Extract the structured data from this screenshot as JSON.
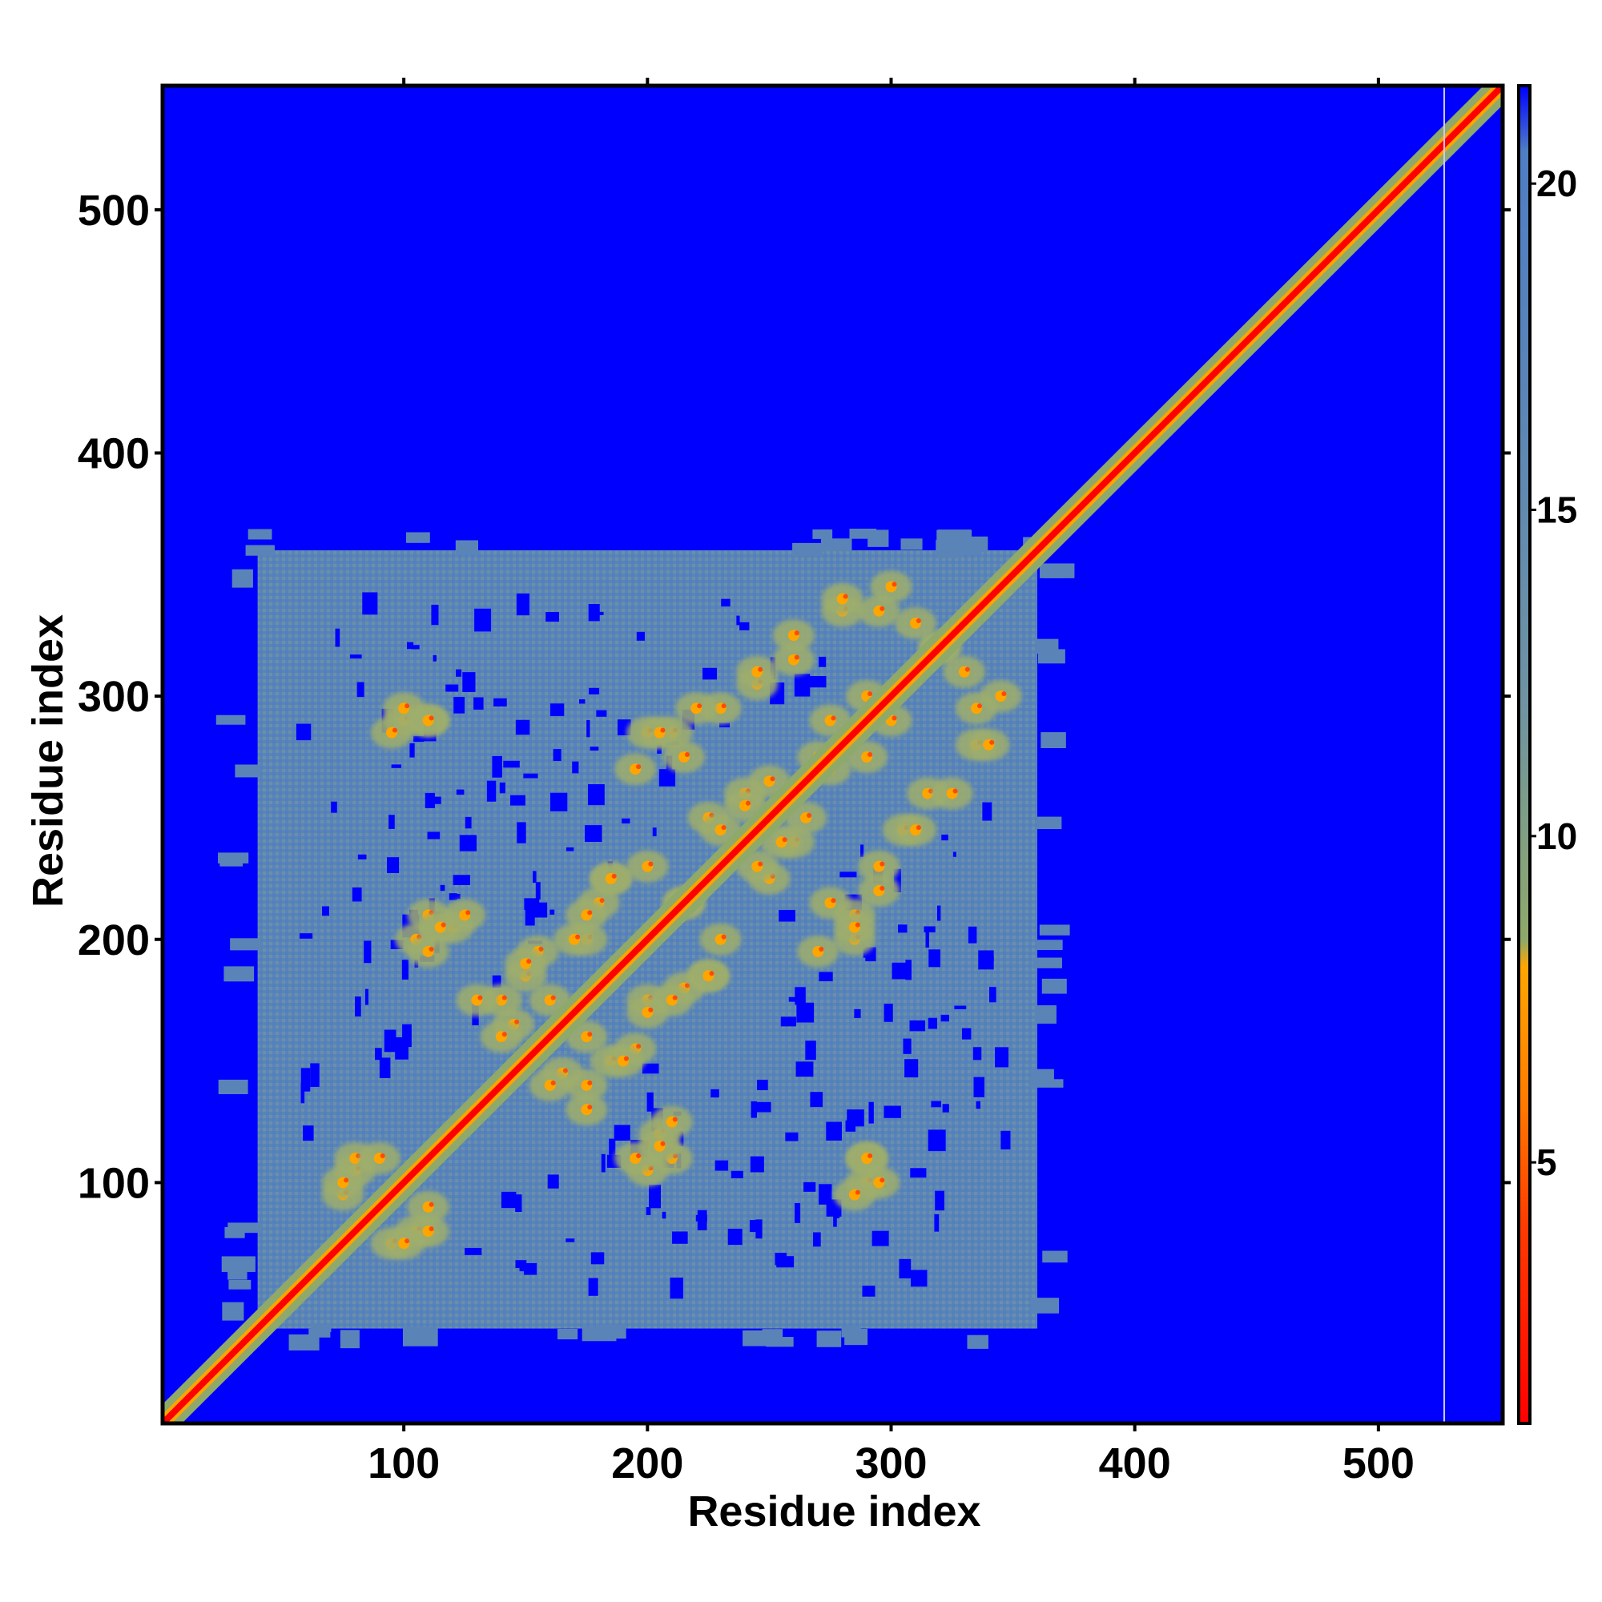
{
  "chart_data": {
    "type": "heatmap",
    "title": "",
    "xlabel": "Residue index",
    "ylabel": "Residue index",
    "xlim": [
      1,
      551
    ],
    "ylim": [
      1,
      551
    ],
    "x_ticks": [
      100,
      200,
      300,
      400,
      500
    ],
    "y_ticks": [
      100,
      200,
      300,
      400,
      500
    ],
    "x_tick_labels": [
      "100",
      "200",
      "300",
      "400",
      "500"
    ],
    "y_tick_labels": [
      "100",
      "200",
      "300",
      "400",
      "500"
    ],
    "colorbar": {
      "min": 1,
      "max": 21.5,
      "ticks": [
        5,
        10,
        15,
        20
      ],
      "tick_labels": [
        "5",
        "10",
        "15",
        "20"
      ],
      "color_stops": [
        {
          "value": 1,
          "color": "#ff0000"
        },
        {
          "value": 4,
          "color": "#ff3a00"
        },
        {
          "value": 6,
          "color": "#ff7d00"
        },
        {
          "value": 8,
          "color": "#ffa500"
        },
        {
          "value": 8.4,
          "color": "#8fa96a"
        },
        {
          "value": 12,
          "color": "#6f93a1"
        },
        {
          "value": 17,
          "color": "#5a84b8"
        },
        {
          "value": 20.5,
          "color": "#4f7dc4"
        },
        {
          "value": 21.5,
          "color": "#0000ff"
        }
      ]
    },
    "background_value": 21.5,
    "background_color": "#0000ff",
    "diagonal": {
      "x_range": [
        1,
        551
      ],
      "value": 1,
      "color": "#ff0000"
    },
    "contact_region": {
      "x_range": [
        40,
        360
      ],
      "y_range": [
        40,
        360
      ],
      "value": 16,
      "color": "#5a84b8"
    },
    "off_diagonal_contacts": [
      {
        "x": 100,
        "y": 290
      },
      {
        "x": 110,
        "y": 290
      },
      {
        "x": 210,
        "y": 285
      },
      {
        "x": 215,
        "y": 275
      },
      {
        "x": 230,
        "y": 295
      },
      {
        "x": 245,
        "y": 305
      },
      {
        "x": 260,
        "y": 315
      },
      {
        "x": 280,
        "y": 335
      },
      {
        "x": 300,
        "y": 345
      },
      {
        "x": 310,
        "y": 330
      },
      {
        "x": 320,
        "y": 320
      },
      {
        "x": 335,
        "y": 295
      },
      {
        "x": 340,
        "y": 280
      },
      {
        "x": 325,
        "y": 260
      },
      {
        "x": 310,
        "y": 245
      },
      {
        "x": 295,
        "y": 220
      },
      {
        "x": 285,
        "y": 200
      },
      {
        "x": 270,
        "y": 195
      },
      {
        "x": 265,
        "y": 250
      },
      {
        "x": 275,
        "y": 270
      },
      {
        "x": 240,
        "y": 260
      },
      {
        "x": 225,
        "y": 250
      },
      {
        "x": 205,
        "y": 285
      },
      {
        "x": 185,
        "y": 225
      },
      {
        "x": 175,
        "y": 200
      },
      {
        "x": 180,
        "y": 215
      },
      {
        "x": 200,
        "y": 230
      },
      {
        "x": 215,
        "y": 215
      },
      {
        "x": 225,
        "y": 185
      },
      {
        "x": 210,
        "y": 175
      },
      {
        "x": 200,
        "y": 170
      },
      {
        "x": 195,
        "y": 155
      },
      {
        "x": 185,
        "y": 150
      },
      {
        "x": 175,
        "y": 140
      },
      {
        "x": 165,
        "y": 145
      },
      {
        "x": 150,
        "y": 190
      },
      {
        "x": 130,
        "y": 175
      },
      {
        "x": 120,
        "y": 205
      },
      {
        "x": 110,
        "y": 210
      },
      {
        "x": 105,
        "y": 200
      },
      {
        "x": 205,
        "y": 115
      },
      {
        "x": 210,
        "y": 125
      },
      {
        "x": 195,
        "y": 110
      },
      {
        "x": 295,
        "y": 100
      },
      {
        "x": 290,
        "y": 110
      },
      {
        "x": 285,
        "y": 95
      },
      {
        "x": 80,
        "y": 105
      },
      {
        "x": 75,
        "y": 95
      },
      {
        "x": 100,
        "y": 75
      },
      {
        "x": 110,
        "y": 80
      },
      {
        "x": 90,
        "y": 110
      },
      {
        "x": 140,
        "y": 160
      },
      {
        "x": 160,
        "y": 175
      },
      {
        "x": 245,
        "y": 230
      },
      {
        "x": 255,
        "y": 240
      },
      {
        "x": 290,
        "y": 275
      },
      {
        "x": 300,
        "y": 290
      }
    ]
  }
}
